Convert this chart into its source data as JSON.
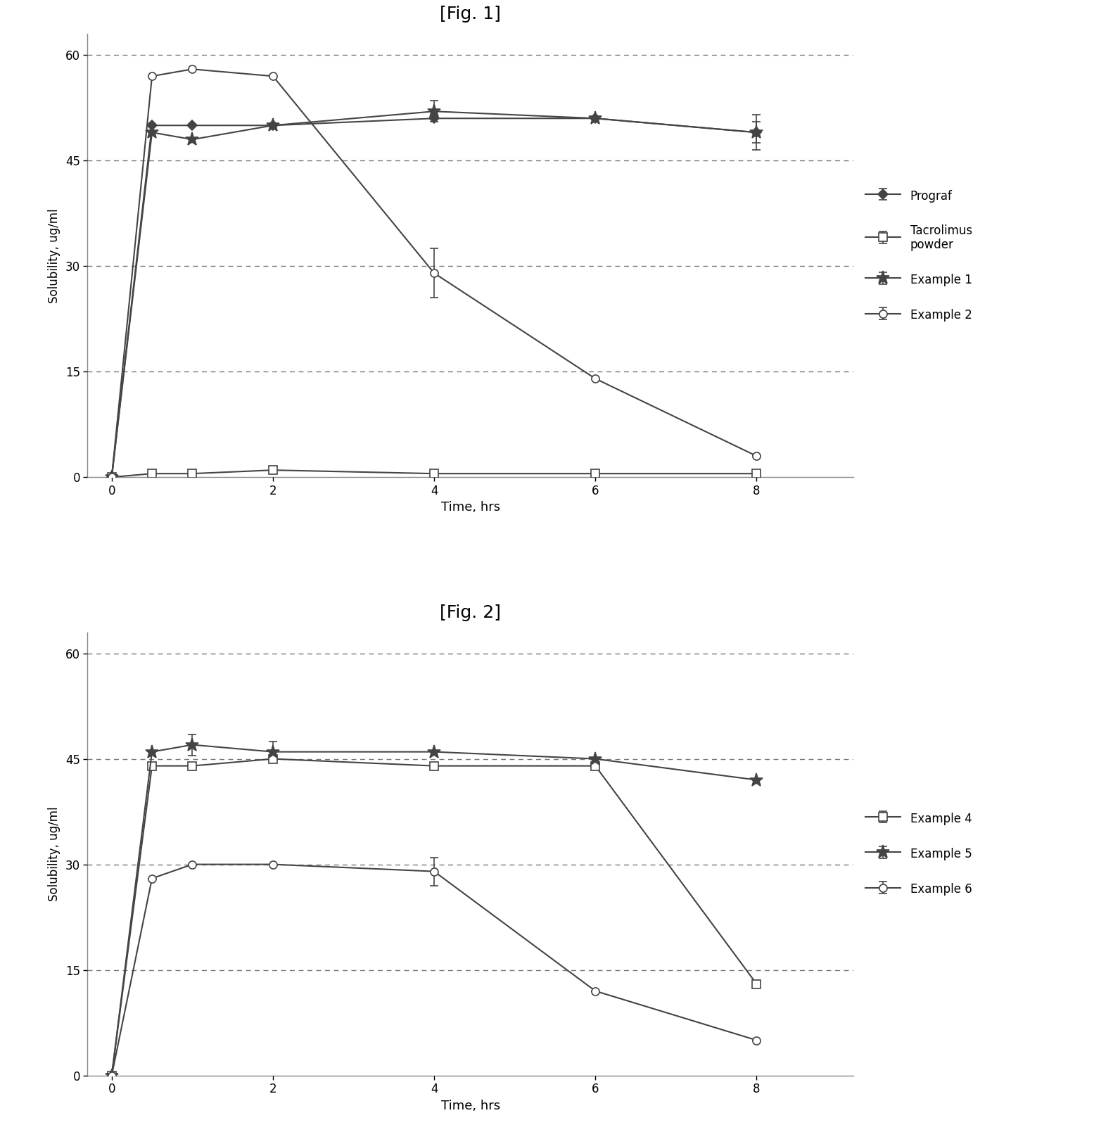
{
  "fig1_title": "[Fig. 1]",
  "fig2_title": "[Fig. 2]",
  "xlabel": "Time, hrs",
  "ylabel": "Solubility, ug/ml",
  "ylim": [
    0,
    63
  ],
  "yticks": [
    0,
    15,
    30,
    45,
    60
  ],
  "ygrid": [
    15,
    30,
    45,
    60
  ],
  "xlim": [
    -0.3,
    9.2
  ],
  "xticks": [
    0,
    2,
    4,
    6,
    8
  ],
  "fig1": {
    "prograf": {
      "x": [
        0,
        0.5,
        1,
        2,
        4,
        6,
        8
      ],
      "y": [
        0,
        50,
        50,
        50,
        51,
        51,
        49
      ],
      "yerr": [
        0,
        0,
        0,
        0,
        0,
        0,
        2.5
      ],
      "label": "Prograf",
      "marker": "D",
      "markerface": "fill",
      "color": "#444444",
      "linestyle": "-"
    },
    "tacrolimus": {
      "x": [
        0,
        0.5,
        1,
        2,
        4,
        6,
        8
      ],
      "y": [
        0,
        0.5,
        0.5,
        1.0,
        0.5,
        0.5,
        0.5
      ],
      "yerr": [
        0,
        0,
        0,
        0,
        0,
        0,
        0
      ],
      "label": "Tacrolimus\npowder",
      "marker": "s",
      "markerface": "open",
      "color": "#444444",
      "linestyle": "-"
    },
    "example1": {
      "x": [
        0,
        0.5,
        1,
        2,
        4,
        6,
        8
      ],
      "y": [
        0,
        49,
        48,
        50,
        52,
        51,
        49
      ],
      "yerr": [
        0,
        0,
        0,
        0,
        1.5,
        0,
        1.5
      ],
      "label": "Example 1",
      "marker": "*",
      "markerface": "fill",
      "color": "#444444",
      "linestyle": "-"
    },
    "example2": {
      "x": [
        0,
        0.5,
        1,
        2,
        4,
        6,
        8
      ],
      "y": [
        0,
        57,
        58,
        57,
        29,
        14,
        3
      ],
      "yerr": [
        0,
        0,
        0,
        0,
        3.5,
        0,
        0
      ],
      "label": "Example 2",
      "marker": "o",
      "markerface": "open",
      "color": "#444444",
      "linestyle": "-"
    }
  },
  "fig2": {
    "example4": {
      "x": [
        0,
        0.5,
        1,
        2,
        4,
        6,
        8
      ],
      "y": [
        0,
        44,
        44,
        45,
        44,
        44,
        13
      ],
      "yerr": [
        0,
        0,
        0,
        0,
        0,
        0,
        0
      ],
      "label": "Example 4",
      "marker": "s",
      "markerface": "open",
      "color": "#444444",
      "linestyle": "-"
    },
    "example5": {
      "x": [
        0,
        0.5,
        1,
        2,
        4,
        6,
        8
      ],
      "y": [
        0,
        46,
        47,
        46,
        46,
        45,
        42
      ],
      "yerr": [
        0,
        0,
        1.5,
        1.5,
        0,
        0,
        0
      ],
      "label": "Example 5",
      "marker": "*",
      "markerface": "fill",
      "color": "#444444",
      "linestyle": "-"
    },
    "example6": {
      "x": [
        0,
        0.5,
        1,
        2,
        4,
        6,
        8
      ],
      "y": [
        0,
        28,
        30,
        30,
        29,
        12,
        5
      ],
      "yerr": [
        0,
        0,
        0,
        0,
        2.0,
        0,
        0
      ],
      "label": "Example 6",
      "marker": "o",
      "markerface": "open",
      "color": "#444444",
      "linestyle": "-"
    }
  },
  "background_color": "#ffffff",
  "text_color": "#000000",
  "grid_color": "#777777",
  "spine_color": "#888888"
}
